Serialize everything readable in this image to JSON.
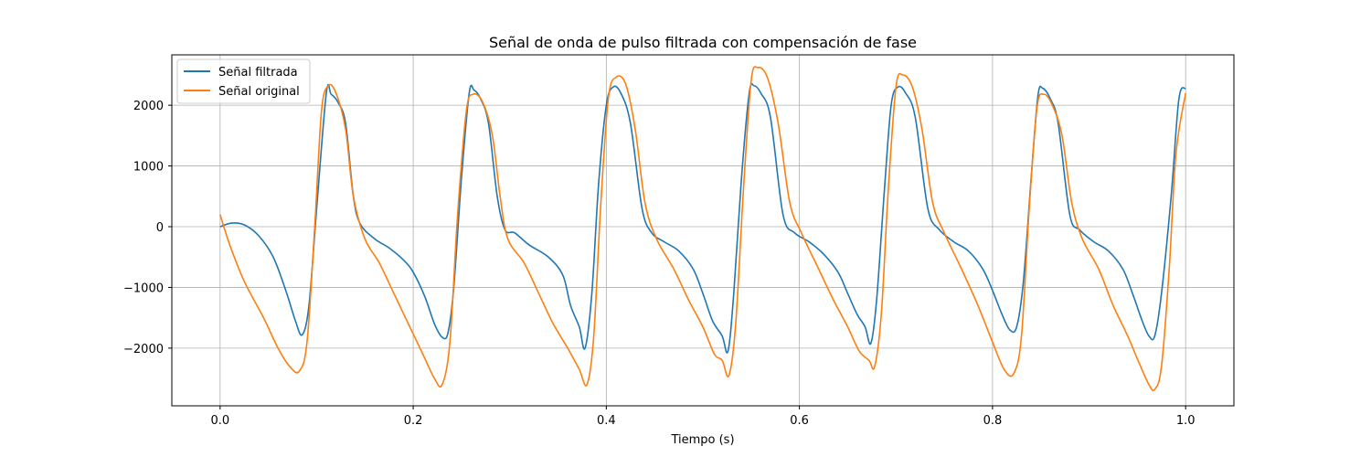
{
  "chart_data": {
    "type": "line",
    "title": "Señal de onda de pulso filtrada con compensación de fase",
    "xlabel": "Tiempo (s)",
    "ylabel": "",
    "xlim": [
      -0.05,
      1.05
    ],
    "ylim": [
      -2950,
      2830
    ],
    "xticks": [
      0.0,
      0.2,
      0.4,
      0.6,
      0.8,
      1.0
    ],
    "xtick_labels": [
      "0.0",
      "0.2",
      "0.4",
      "0.6",
      "0.8",
      "1.0"
    ],
    "yticks": [
      -2000,
      -1000,
      0,
      1000,
      2000
    ],
    "ytick_labels": [
      "−2000",
      "−1000",
      "0",
      "1000",
      "2000"
    ],
    "grid": true,
    "legend_position": "upper-left",
    "series": [
      {
        "name": "Señal filtrada",
        "color": "#1f77b4",
        "points": [
          [
            0.0,
            0
          ],
          [
            0.012,
            60
          ],
          [
            0.025,
            30
          ],
          [
            0.04,
            -150
          ],
          [
            0.055,
            -500
          ],
          [
            0.068,
            -1050
          ],
          [
            0.078,
            -1550
          ],
          [
            0.085,
            -1780
          ],
          [
            0.092,
            -1300
          ],
          [
            0.1,
            300
          ],
          [
            0.11,
            2200
          ],
          [
            0.115,
            2180
          ],
          [
            0.122,
            2050
          ],
          [
            0.13,
            1700
          ],
          [
            0.138,
            500
          ],
          [
            0.145,
            50
          ],
          [
            0.16,
            -200
          ],
          [
            0.175,
            -350
          ],
          [
            0.19,
            -550
          ],
          [
            0.2,
            -750
          ],
          [
            0.212,
            -1150
          ],
          [
            0.222,
            -1600
          ],
          [
            0.23,
            -1820
          ],
          [
            0.236,
            -1750
          ],
          [
            0.242,
            -1000
          ],
          [
            0.25,
            800
          ],
          [
            0.258,
            2200
          ],
          [
            0.263,
            2250
          ],
          [
            0.27,
            2100
          ],
          [
            0.278,
            1700
          ],
          [
            0.287,
            500
          ],
          [
            0.295,
            -50
          ],
          [
            0.305,
            -100
          ],
          [
            0.32,
            -300
          ],
          [
            0.34,
            -500
          ],
          [
            0.355,
            -800
          ],
          [
            0.363,
            -1300
          ],
          [
            0.372,
            -1650
          ],
          [
            0.378,
            -2000
          ],
          [
            0.385,
            -1100
          ],
          [
            0.392,
            700
          ],
          [
            0.4,
            2000
          ],
          [
            0.407,
            2300
          ],
          [
            0.415,
            2200
          ],
          [
            0.425,
            1700
          ],
          [
            0.437,
            300
          ],
          [
            0.447,
            -100
          ],
          [
            0.46,
            -250
          ],
          [
            0.475,
            -400
          ],
          [
            0.49,
            -700
          ],
          [
            0.5,
            -1100
          ],
          [
            0.51,
            -1550
          ],
          [
            0.52,
            -1800
          ],
          [
            0.526,
            -2050
          ],
          [
            0.532,
            -1100
          ],
          [
            0.54,
            800
          ],
          [
            0.548,
            2200
          ],
          [
            0.553,
            2320
          ],
          [
            0.56,
            2200
          ],
          [
            0.57,
            1800
          ],
          [
            0.583,
            200
          ],
          [
            0.595,
            -100
          ],
          [
            0.61,
            -250
          ],
          [
            0.625,
            -450
          ],
          [
            0.64,
            -750
          ],
          [
            0.65,
            -1100
          ],
          [
            0.66,
            -1450
          ],
          [
            0.668,
            -1650
          ],
          [
            0.674,
            -1920
          ],
          [
            0.68,
            -1200
          ],
          [
            0.688,
            600
          ],
          [
            0.695,
            2000
          ],
          [
            0.702,
            2300
          ],
          [
            0.71,
            2200
          ],
          [
            0.72,
            1800
          ],
          [
            0.733,
            300
          ],
          [
            0.745,
            -50
          ],
          [
            0.76,
            -250
          ],
          [
            0.775,
            -400
          ],
          [
            0.79,
            -700
          ],
          [
            0.8,
            -1050
          ],
          [
            0.81,
            -1450
          ],
          [
            0.818,
            -1700
          ],
          [
            0.825,
            -1650
          ],
          [
            0.832,
            -900
          ],
          [
            0.84,
            800
          ],
          [
            0.847,
            2150
          ],
          [
            0.852,
            2280
          ],
          [
            0.86,
            2100
          ],
          [
            0.868,
            1700
          ],
          [
            0.88,
            200
          ],
          [
            0.89,
            -50
          ],
          [
            0.905,
            -250
          ],
          [
            0.92,
            -400
          ],
          [
            0.935,
            -700
          ],
          [
            0.945,
            -1100
          ],
          [
            0.955,
            -1550
          ],
          [
            0.962,
            -1800
          ],
          [
            0.968,
            -1800
          ],
          [
            0.975,
            -1100
          ],
          [
            0.985,
            500
          ],
          [
            0.993,
            2100
          ],
          [
            1.0,
            2280
          ]
        ]
      },
      {
        "name": "Señal original",
        "color": "#ff7f0e",
        "points": [
          [
            0.0,
            200
          ],
          [
            0.01,
            -300
          ],
          [
            0.025,
            -900
          ],
          [
            0.045,
            -1500
          ],
          [
            0.06,
            -2000
          ],
          [
            0.072,
            -2300
          ],
          [
            0.082,
            -2380
          ],
          [
            0.09,
            -1900
          ],
          [
            0.098,
            0
          ],
          [
            0.105,
            1900
          ],
          [
            0.112,
            2320
          ],
          [
            0.12,
            2200
          ],
          [
            0.13,
            1600
          ],
          [
            0.138,
            500
          ],
          [
            0.15,
            -200
          ],
          [
            0.165,
            -600
          ],
          [
            0.18,
            -1100
          ],
          [
            0.195,
            -1600
          ],
          [
            0.21,
            -2100
          ],
          [
            0.222,
            -2500
          ],
          [
            0.23,
            -2600
          ],
          [
            0.238,
            -1900
          ],
          [
            0.246,
            200
          ],
          [
            0.255,
            1900
          ],
          [
            0.262,
            2180
          ],
          [
            0.272,
            2050
          ],
          [
            0.282,
            1500
          ],
          [
            0.29,
            500
          ],
          [
            0.298,
            -200
          ],
          [
            0.315,
            -600
          ],
          [
            0.33,
            -1100
          ],
          [
            0.345,
            -1600
          ],
          [
            0.36,
            -2000
          ],
          [
            0.372,
            -2350
          ],
          [
            0.38,
            -2600
          ],
          [
            0.387,
            -1800
          ],
          [
            0.394,
            300
          ],
          [
            0.402,
            2100
          ],
          [
            0.41,
            2460
          ],
          [
            0.42,
            2350
          ],
          [
            0.43,
            1600
          ],
          [
            0.44,
            400
          ],
          [
            0.452,
            -200
          ],
          [
            0.47,
            -700
          ],
          [
            0.485,
            -1200
          ],
          [
            0.5,
            -1650
          ],
          [
            0.512,
            -2100
          ],
          [
            0.52,
            -2200
          ],
          [
            0.527,
            -2450
          ],
          [
            0.534,
            -1600
          ],
          [
            0.542,
            600
          ],
          [
            0.55,
            2400
          ],
          [
            0.557,
            2620
          ],
          [
            0.567,
            2450
          ],
          [
            0.578,
            1700
          ],
          [
            0.59,
            400
          ],
          [
            0.602,
            -100
          ],
          [
            0.62,
            -700
          ],
          [
            0.635,
            -1200
          ],
          [
            0.65,
            -1650
          ],
          [
            0.662,
            -2050
          ],
          [
            0.672,
            -2200
          ],
          [
            0.678,
            -2300
          ],
          [
            0.685,
            -1400
          ],
          [
            0.692,
            600
          ],
          [
            0.7,
            2300
          ],
          [
            0.707,
            2500
          ],
          [
            0.717,
            2300
          ],
          [
            0.727,
            1600
          ],
          [
            0.738,
            400
          ],
          [
            0.75,
            -100
          ],
          [
            0.768,
            -700
          ],
          [
            0.785,
            -1300
          ],
          [
            0.8,
            -1900
          ],
          [
            0.812,
            -2350
          ],
          [
            0.822,
            -2420
          ],
          [
            0.83,
            -1800
          ],
          [
            0.838,
            300
          ],
          [
            0.846,
            1950
          ],
          [
            0.853,
            2180
          ],
          [
            0.862,
            2000
          ],
          [
            0.872,
            1500
          ],
          [
            0.882,
            400
          ],
          [
            0.893,
            -200
          ],
          [
            0.91,
            -700
          ],
          [
            0.925,
            -1300
          ],
          [
            0.94,
            -1800
          ],
          [
            0.952,
            -2250
          ],
          [
            0.962,
            -2600
          ],
          [
            0.968,
            -2680
          ],
          [
            0.975,
            -2300
          ],
          [
            0.983,
            -700
          ],
          [
            0.99,
            1200
          ],
          [
            1.0,
            2200
          ]
        ]
      }
    ]
  }
}
